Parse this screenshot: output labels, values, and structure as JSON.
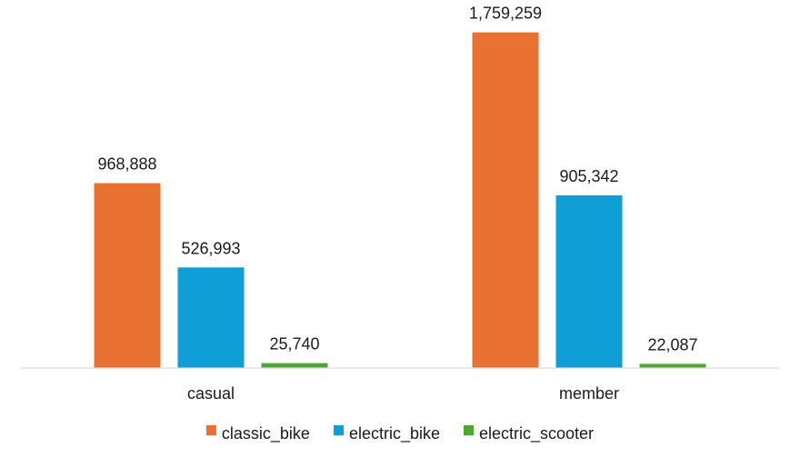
{
  "chart_data": {
    "type": "bar",
    "title": "",
    "xlabel": "",
    "ylabel": "",
    "categories": [
      "casual",
      "member"
    ],
    "series": [
      {
        "name": "classic_bike",
        "values": [
          968888,
          1759259
        ],
        "labels": [
          "968,888",
          "1,759,259"
        ],
        "color": "#E97132"
      },
      {
        "name": "electric_bike",
        "values": [
          526993,
          905342
        ],
        "labels": [
          "526,993",
          "905,342"
        ],
        "color": "#0F9ED5"
      },
      {
        "name": "electric_scooter",
        "values": [
          25740,
          22087
        ],
        "labels": [
          "25,740",
          "22,087"
        ],
        "color": "#4EA72E"
      }
    ],
    "ylim": [
      0,
      1900000
    ],
    "grid": false,
    "legend": "bottom",
    "data_labels": true
  }
}
